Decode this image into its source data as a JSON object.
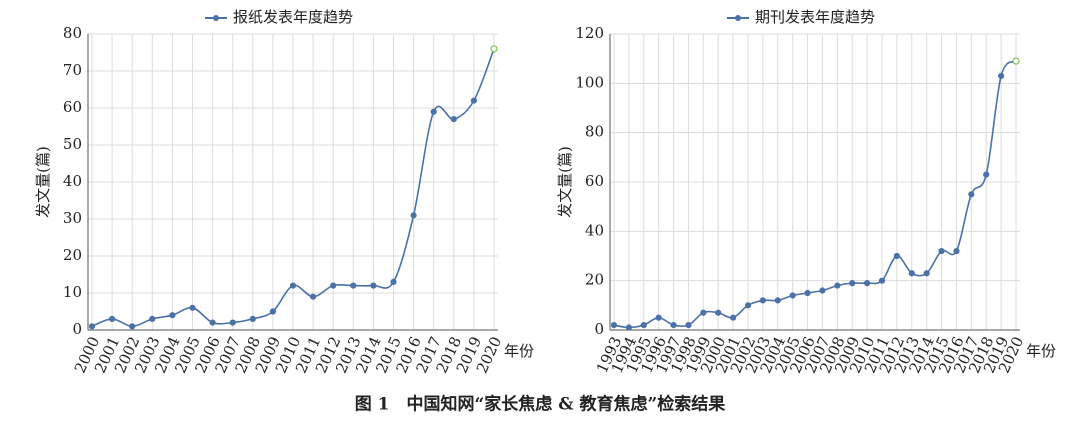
{
  "chart_data": [
    {
      "type": "line",
      "title": "报纸发表年度趋势",
      "y_label": "发文量(篇)",
      "x_label": "年份",
      "categories": [
        "2000",
        "2001",
        "2002",
        "2003",
        "2004",
        "2005",
        "2006",
        "2007",
        "2008",
        "2009",
        "2010",
        "2011",
        "2012",
        "2013",
        "2014",
        "2015",
        "2016",
        "2017",
        "2018",
        "2019",
        "2020"
      ],
      "series": [
        {
          "name": "报纸发表年度趋势",
          "color": "#4a72a8",
          "values": [
            1,
            3,
            1,
            3,
            4,
            6,
            2,
            2,
            3,
            5,
            12,
            9,
            12,
            12,
            12,
            13,
            31,
            59,
            57,
            62,
            76
          ]
        }
      ],
      "ylim": [
        0,
        80
      ],
      "yticks": [
        0,
        10,
        20,
        30,
        40,
        50,
        60,
        70,
        80
      ],
      "grid": true,
      "last_point_color": "#7cc04a"
    },
    {
      "type": "line",
      "title": "期刊发表年度趋势",
      "y_label": "发文量(篇)",
      "x_label": "年份",
      "categories": [
        "1993",
        "1994",
        "1995",
        "1996",
        "1997",
        "1998",
        "1999",
        "2000",
        "2001",
        "2002",
        "2003",
        "2004",
        "2005",
        "2006",
        "2007",
        "2008",
        "2009",
        "2010",
        "2011",
        "2012",
        "2013",
        "2014",
        "2015",
        "2016",
        "2017",
        "2018",
        "2019",
        "2020"
      ],
      "series": [
        {
          "name": "期刊发表年度趋势",
          "color": "#4a72a8",
          "values": [
            2,
            1,
            2,
            5,
            2,
            2,
            7,
            7,
            5,
            10,
            12,
            12,
            14,
            15,
            16,
            18,
            19,
            19,
            20,
            30,
            23,
            23,
            32,
            32,
            55,
            63,
            103,
            109
          ]
        }
      ],
      "ylim": [
        0,
        120
      ],
      "yticks": [
        0,
        20,
        40,
        60,
        80,
        100,
        120
      ],
      "grid": true,
      "last_point_color": "#7cc04a"
    }
  ],
  "caption": "图 1　中国知网“家长焦虑 & 教育焦虑”检索结果"
}
